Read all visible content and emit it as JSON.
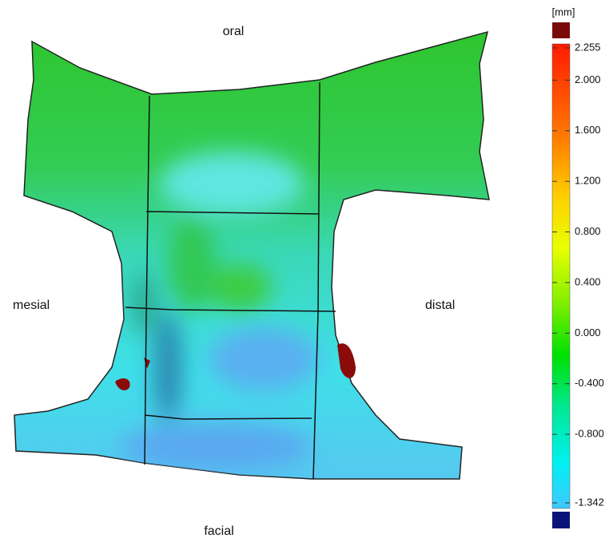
{
  "labels": {
    "top": "oral",
    "left": "mesial",
    "right": "distal",
    "bottom": "facial"
  },
  "colorbar": {
    "unit": "[mm]",
    "ticks": [
      {
        "value": 2.255,
        "label": "2.255"
      },
      {
        "value": 2.0,
        "label": "2.000"
      },
      {
        "value": 1.6,
        "label": "1.600"
      },
      {
        "value": 1.2,
        "label": "1.200"
      },
      {
        "value": 0.8,
        "label": "0.800"
      },
      {
        "value": 0.4,
        "label": "0.400"
      },
      {
        "value": 0,
        "label": "0.000"
      },
      {
        "value": -0.4,
        "label": "-0.400"
      },
      {
        "value": -0.8,
        "label": "-0.800"
      },
      {
        "value": -1.342,
        "label": "-1.342"
      }
    ]
  }
}
